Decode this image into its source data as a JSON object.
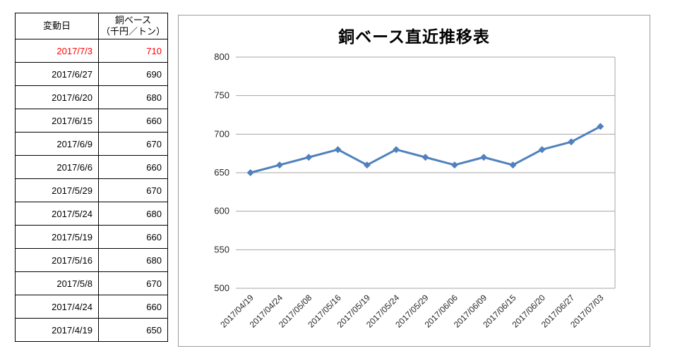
{
  "page": {
    "background": "#FFFFFF"
  },
  "table": {
    "headers": {
      "date": "変動日",
      "value_line1": "銅ベース",
      "value_line2": "（千円／トン）"
    },
    "highlight_color": "#FF0000",
    "rows": [
      {
        "date": "2017/7/3",
        "value": "710",
        "highlight": true
      },
      {
        "date": "2017/6/27",
        "value": "690",
        "highlight": false
      },
      {
        "date": "2017/6/20",
        "value": "680",
        "highlight": false
      },
      {
        "date": "2017/6/15",
        "value": "660",
        "highlight": false
      },
      {
        "date": "2017/6/9",
        "value": "670",
        "highlight": false
      },
      {
        "date": "2017/6/6",
        "value": "660",
        "highlight": false
      },
      {
        "date": "2017/5/29",
        "value": "670",
        "highlight": false
      },
      {
        "date": "2017/5/24",
        "value": "680",
        "highlight": false
      },
      {
        "date": "2017/5/19",
        "value": "660",
        "highlight": false
      },
      {
        "date": "2017/5/16",
        "value": "680",
        "highlight": false
      },
      {
        "date": "2017/5/8",
        "value": "670",
        "highlight": false
      },
      {
        "date": "2017/4/24",
        "value": "660",
        "highlight": false
      },
      {
        "date": "2017/4/19",
        "value": "650",
        "highlight": false
      }
    ]
  },
  "chart_data": {
    "type": "line",
    "title": "銅ベース直近推移表",
    "categories": [
      "2017/04/19",
      "2017/04/24",
      "2017/05/08",
      "2017/05/16",
      "2017/05/19",
      "2017/05/24",
      "2017/05/29",
      "2017/06/06",
      "2017/06/09",
      "2017/06/15",
      "2017/06/20",
      "2017/06/27",
      "2017/07/03"
    ],
    "series": [
      {
        "name": "銅ベース（千円／トン）",
        "values": [
          650,
          660,
          670,
          680,
          660,
          680,
          670,
          660,
          670,
          660,
          680,
          690,
          710
        ]
      }
    ],
    "ylim": [
      500,
      800
    ],
    "yticks": [
      500,
      550,
      600,
      650,
      700,
      750,
      800
    ],
    "ytick_step": 50,
    "grid": true,
    "legend": "none",
    "marker": "diamond",
    "line_color": "#4F81BD",
    "gridline_color": "#A6A6A6",
    "axis_label_color": "#262626",
    "border_color": "#9C9C9C"
  }
}
